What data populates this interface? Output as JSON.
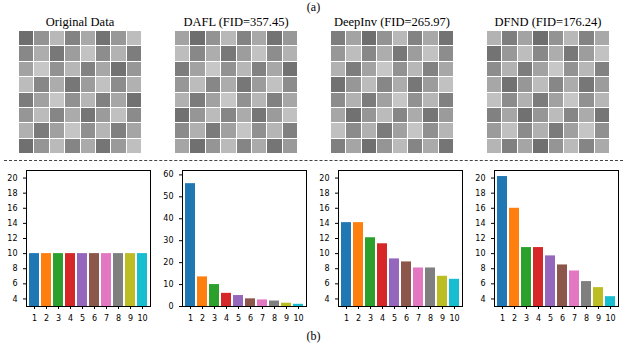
{
  "panel_labels": {
    "images": "(a)",
    "charts": "(b)"
  },
  "chart_data": [
    {
      "type": "bar",
      "title": "Original Data",
      "categories": [
        "1",
        "2",
        "3",
        "4",
        "5",
        "6",
        "7",
        "8",
        "9",
        "10"
      ],
      "values": [
        10,
        10,
        10,
        10,
        10,
        10,
        10,
        10,
        10,
        10
      ],
      "colors": [
        "#1f77b4",
        "#ff7f0e",
        "#2ca02c",
        "#d62728",
        "#9467bd",
        "#8c564b",
        "#e377c2",
        "#7f7f7f",
        "#bcbd22",
        "#17becf"
      ],
      "ylim": [
        3,
        21
      ],
      "yticks": [
        4,
        6,
        8,
        10,
        12,
        14,
        16,
        18,
        20
      ],
      "grid": false
    },
    {
      "type": "bar",
      "title": "DAFL (FID=357.45)",
      "categories": [
        "1",
        "2",
        "3",
        "4",
        "5",
        "6",
        "7",
        "8",
        "9",
        "10"
      ],
      "values": [
        56,
        13.5,
        10,
        6,
        5,
        3.5,
        3,
        2.5,
        1.5,
        1
      ],
      "colors": [
        "#1f77b4",
        "#ff7f0e",
        "#2ca02c",
        "#d62728",
        "#9467bd",
        "#8c564b",
        "#e377c2",
        "#7f7f7f",
        "#bcbd22",
        "#17becf"
      ],
      "ylim": [
        0,
        62
      ],
      "yticks": [
        0,
        10,
        20,
        30,
        40,
        50,
        60
      ],
      "grid": false
    },
    {
      "type": "bar",
      "title": "DeepInv (FID=265.97)",
      "categories": [
        "1",
        "2",
        "3",
        "4",
        "5",
        "6",
        "7",
        "8",
        "9",
        "10"
      ],
      "values": [
        14.1,
        14.1,
        12.1,
        11.3,
        9.3,
        8.9,
        8.1,
        8.1,
        7.0,
        6.6
      ],
      "colors": [
        "#1f77b4",
        "#ff7f0e",
        "#2ca02c",
        "#d62728",
        "#9467bd",
        "#8c564b",
        "#e377c2",
        "#7f7f7f",
        "#bcbd22",
        "#17becf"
      ],
      "ylim": [
        3,
        21
      ],
      "yticks": [
        4,
        6,
        8,
        10,
        12,
        14,
        16,
        18,
        20
      ],
      "grid": false
    },
    {
      "type": "bar",
      "title": "DFND (FID=176.24)",
      "categories": [
        "1",
        "2",
        "3",
        "4",
        "5",
        "6",
        "7",
        "8",
        "9",
        "10"
      ],
      "values": [
        20.2,
        16,
        10.8,
        10.8,
        9.7,
        8.5,
        7.7,
        6.3,
        5.5,
        4.3
      ],
      "colors": [
        "#1f77b4",
        "#ff7f0e",
        "#2ca02c",
        "#d62728",
        "#9467bd",
        "#8c564b",
        "#e377c2",
        "#7f7f7f",
        "#bcbd22",
        "#17becf"
      ],
      "ylim": [
        3,
        21
      ],
      "yticks": [
        4,
        6,
        8,
        10,
        12,
        14,
        16,
        18,
        20
      ],
      "grid": false
    }
  ]
}
